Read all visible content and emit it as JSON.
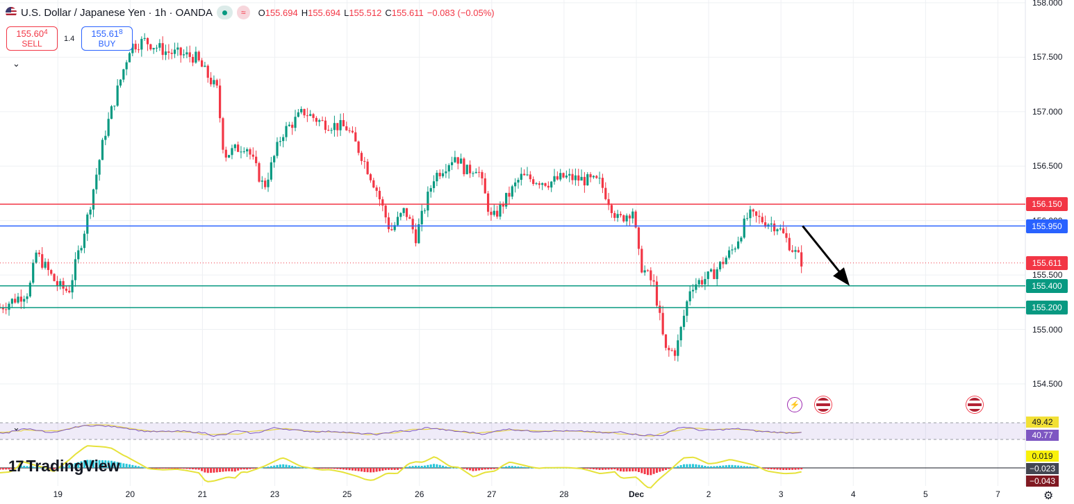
{
  "header": {
    "title": "U.S. Dollar / Japanese Yen · 1h · OANDA",
    "ohlc": {
      "o_label": "O",
      "o": "155.694",
      "h_label": "H",
      "h": "155.694",
      "l_label": "L",
      "l": "155.512",
      "c_label": "C",
      "c": "155.611",
      "change": "−0.083 (−0.05%)"
    },
    "status_color": "#089981"
  },
  "trade": {
    "sell_price": "155.60",
    "sell_price_small": "4",
    "sell_label": "SELL",
    "buy_price": "155.61",
    "buy_price_small": "8",
    "buy_label": "BUY",
    "spread": "1.4"
  },
  "brand": {
    "name": "TradingView"
  },
  "chart_data": {
    "type": "candlestick",
    "symbol": "U.S. Dollar / Japanese Yen",
    "interval": "1h",
    "source": "OANDA",
    "ylim": [
      154.2,
      158.0
    ],
    "y_ticks": [
      "158.000",
      "157.500",
      "157.000",
      "156.500",
      "156.000",
      "155.500",
      "155.000",
      "154.500"
    ],
    "x_ticks": [
      {
        "label": "19",
        "t": 0.8
      },
      {
        "label": "20",
        "t": 1.8
      },
      {
        "label": "21",
        "t": 2.8
      },
      {
        "label": "23",
        "t": 3.8
      },
      {
        "label": "25",
        "t": 4.8
      },
      {
        "label": "26",
        "t": 5.8
      },
      {
        "label": "27",
        "t": 6.8
      },
      {
        "label": "28",
        "t": 7.8
      },
      {
        "label": "Dec",
        "t": 8.8
      },
      {
        "label": "2",
        "t": 9.8
      },
      {
        "label": "3",
        "t": 10.8
      },
      {
        "label": "4",
        "t": 11.8
      },
      {
        "label": "5",
        "t": 12.8
      },
      {
        "label": "7",
        "t": 13.8
      }
    ],
    "price_path": [
      [
        0,
        155.2
      ],
      [
        0.4,
        155.35
      ],
      [
        0.5,
        155.7
      ],
      [
        0.8,
        155.4
      ],
      [
        0.95,
        155.35
      ],
      [
        1.2,
        156.0
      ],
      [
        1.45,
        156.8
      ],
      [
        1.8,
        157.6
      ],
      [
        2.0,
        157.65
      ],
      [
        2.3,
        157.55
      ],
      [
        2.7,
        157.5
      ],
      [
        3.0,
        157.2
      ],
      [
        3.1,
        156.6
      ],
      [
        3.4,
        156.7
      ],
      [
        3.65,
        156.3
      ],
      [
        3.9,
        156.8
      ],
      [
        4.2,
        157.0
      ],
      [
        4.45,
        156.9
      ],
      [
        4.8,
        156.85
      ],
      [
        5.0,
        156.6
      ],
      [
        5.2,
        156.3
      ],
      [
        5.4,
        155.9
      ],
      [
        5.6,
        156.1
      ],
      [
        5.75,
        155.85
      ],
      [
        6.0,
        156.4
      ],
      [
        6.3,
        156.6
      ],
      [
        6.45,
        156.45
      ],
      [
        6.6,
        156.5
      ],
      [
        6.8,
        156.0
      ],
      [
        7.1,
        156.3
      ],
      [
        7.2,
        156.4
      ],
      [
        7.6,
        156.35
      ],
      [
        7.8,
        156.4
      ],
      [
        8.3,
        156.35
      ],
      [
        8.55,
        156.0
      ],
      [
        8.75,
        156.1
      ],
      [
        8.85,
        155.6
      ],
      [
        9.05,
        155.4
      ],
      [
        9.2,
        154.8
      ],
      [
        9.35,
        154.8
      ],
      [
        9.55,
        155.4
      ],
      [
        9.85,
        155.5
      ],
      [
        10.15,
        155.75
      ],
      [
        10.35,
        156.05
      ],
      [
        10.55,
        156.0
      ],
      [
        10.75,
        155.95
      ],
      [
        11.0,
        155.7
      ],
      [
        11.1,
        155.611
      ]
    ],
    "levels": [
      {
        "label": "156.150",
        "value": 156.15,
        "color": "#f23645"
      },
      {
        "label": "155.950",
        "value": 155.95,
        "color": "#2962ff"
      },
      {
        "label": "155.400",
        "value": 155.4,
        "color": "#089981"
      },
      {
        "label": "155.200",
        "value": 155.2,
        "color": "#089981"
      }
    ],
    "last_price": {
      "label": "155.611",
      "value": 155.611,
      "color": "#f23645"
    },
    "annotation_arrow": {
      "from": {
        "t": 11.1,
        "price": 155.95
      },
      "to": {
        "t": 11.75,
        "price": 155.4
      },
      "color": "#000000"
    },
    "rsi_values": [
      "49.42",
      "40.77"
    ],
    "macd_values": [
      "0.019",
      "−0.023",
      "−0.043"
    ],
    "events": [
      "bolt",
      "us-flag",
      "us-flag"
    ],
    "colors": {
      "up": "#089981",
      "down": "#f23645"
    }
  }
}
